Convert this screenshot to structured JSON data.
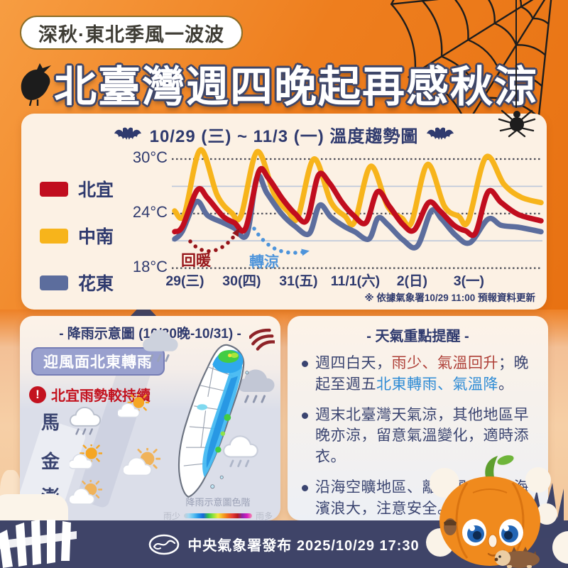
{
  "colors": {
    "navy": "#3A4470",
    "title_navy": "#2F3A6E",
    "accent_red": "#C3121F",
    "bullet_red": "#AF4038",
    "bullet_blue": "#2D8BD5",
    "footer_bg": "#3F4468",
    "badge_border": "#8a6d28",
    "periwinkle": "#99A0CE"
  },
  "header": {
    "topic_badge": "深秋·東北季風一波波",
    "main_title": "北臺灣週四晚起再感秋涼"
  },
  "chart_data": {
    "type": "line",
    "title": "10/29 (三) ~ 11/3 (一) 溫度趨勢圖",
    "unit": "°C",
    "ylim": [
      17.5,
      31.8
    ],
    "xlim": [
      0,
      6.45
    ],
    "yticks_dotted": [
      30,
      24,
      18
    ],
    "yticks_solid": [
      27,
      21
    ],
    "grid": "horizontal-only",
    "legend_position": "left",
    "x_categories": [
      "29(三)",
      "30(四)",
      "31(五)",
      "11/1(六)",
      "2(日)",
      "3(一)"
    ],
    "series": [
      {
        "name": "北宜",
        "color": "#C10D1E",
        "z": 3,
        "points": [
          [
            0,
            22
          ],
          [
            0.14,
            22.6
          ],
          [
            0.4,
            26.6
          ],
          [
            0.58,
            25.7
          ],
          [
            0.85,
            23.7
          ],
          [
            1.05,
            23
          ],
          [
            1.25,
            22.4
          ],
          [
            1.48,
            28.6
          ],
          [
            1.65,
            27.9
          ],
          [
            1.9,
            25.6
          ],
          [
            2.12,
            24
          ],
          [
            2.33,
            23.3
          ],
          [
            2.53,
            28.2
          ],
          [
            2.72,
            27.4
          ],
          [
            2.95,
            25.2
          ],
          [
            3.15,
            23.8
          ],
          [
            3.37,
            23
          ],
          [
            3.57,
            26.4
          ],
          [
            3.78,
            24.8
          ],
          [
            4.02,
            22.8
          ],
          [
            4.22,
            22.2
          ],
          [
            4.47,
            25.2
          ],
          [
            4.67,
            24.3
          ],
          [
            4.92,
            22.7
          ],
          [
            5.12,
            22.1
          ],
          [
            5.3,
            21.9
          ],
          [
            5.52,
            26.4
          ],
          [
            5.75,
            25.2
          ],
          [
            6.05,
            23.9
          ],
          [
            6.45,
            23.2
          ]
        ]
      },
      {
        "name": "中南",
        "color": "#F7B41B",
        "z": 1,
        "points": [
          [
            0,
            24.3
          ],
          [
            0.17,
            23.9
          ],
          [
            0.45,
            31
          ],
          [
            0.75,
            26
          ],
          [
            1,
            24.1
          ],
          [
            1.17,
            23.8
          ],
          [
            1.45,
            30.8
          ],
          [
            1.75,
            26.2
          ],
          [
            2,
            24.2
          ],
          [
            2.17,
            23.6
          ],
          [
            2.45,
            30
          ],
          [
            2.75,
            25.3
          ],
          [
            3,
            23.7
          ],
          [
            3.17,
            23.1
          ],
          [
            3.45,
            29.2
          ],
          [
            3.75,
            24.8
          ],
          [
            4,
            23.5
          ],
          [
            4.17,
            23
          ],
          [
            4.45,
            29.4
          ],
          [
            4.75,
            24.8
          ],
          [
            5,
            23.7
          ],
          [
            5.17,
            23.2
          ],
          [
            5.48,
            30.2
          ],
          [
            5.8,
            27.2
          ],
          [
            6.1,
            25.8
          ],
          [
            6.45,
            25.2
          ]
        ]
      },
      {
        "name": "花東",
        "color": "#5C6D9D",
        "z": 2,
        "points": [
          [
            0,
            21.2
          ],
          [
            0.13,
            22
          ],
          [
            0.38,
            25.3
          ],
          [
            0.58,
            23.8
          ],
          [
            0.85,
            23
          ],
          [
            1.05,
            22.4
          ],
          [
            1.27,
            21.7
          ],
          [
            1.45,
            28
          ],
          [
            1.62,
            26.3
          ],
          [
            1.88,
            24
          ],
          [
            2.12,
            22.6
          ],
          [
            2.37,
            21.8
          ],
          [
            2.55,
            24.9
          ],
          [
            2.75,
            23.6
          ],
          [
            2.98,
            22.6
          ],
          [
            3.17,
            22
          ],
          [
            3.42,
            21.2
          ],
          [
            3.58,
            23.5
          ],
          [
            3.75,
            22.8
          ],
          [
            4.02,
            21.1
          ],
          [
            4.27,
            20.4
          ],
          [
            4.52,
            24.3
          ],
          [
            4.7,
            23.4
          ],
          [
            4.95,
            21.6
          ],
          [
            5.2,
            20.8
          ],
          [
            5.52,
            23.4
          ],
          [
            5.75,
            22.7
          ],
          [
            6.05,
            22.5
          ],
          [
            6.45,
            22
          ]
        ]
      }
    ],
    "annotations": [
      {
        "label": "回暖",
        "color": "#96151A",
        "style": "dotted-arrow-up"
      },
      {
        "label": "轉涼",
        "color": "#4D94DB",
        "style": "dotted-arrow-down"
      }
    ],
    "footnote": "※ 依據氣象署10/29 11:00 預報資料更新"
  },
  "rain_card": {
    "title": "- 降雨示意圖 (10/30晚-10/31) -",
    "badge": "迎風面北東轉雨",
    "warning_icon": "!",
    "warning": "北宜雨勢較持續",
    "regions": [
      {
        "label": "馬",
        "icon": "rain-cloud"
      },
      {
        "label": "金",
        "icon": "partly-sunny"
      },
      {
        "label": "澎",
        "icon": "mostly-cloudy"
      }
    ],
    "map_icons": [
      "rain-cloud-gray",
      "rain-cloud-dark",
      "rain-cloud-white",
      "partly-sunny",
      "mostly-cloudy"
    ],
    "scale": {
      "title": "降雨示意圖色階",
      "min_label": "雨少",
      "max_label": "雨多",
      "colors": [
        "#c9cdd6",
        "#9fd8f2",
        "#5bc0f0",
        "#2196e8",
        "#1565d8",
        "#35c24a",
        "#8ee33e",
        "#f5e63a",
        "#f5a623",
        "#ef6c1a",
        "#e53935",
        "#b71c1c",
        "#8e24aa",
        "#d81bc0",
        "#f48fb1"
      ]
    }
  },
  "highlight_card": {
    "title": "- 天氣重點提醒 -",
    "bullets": [
      [
        {
          "t": "週四白天，",
          "c": "navy"
        },
        {
          "t": "雨少、氣溫回升",
          "c": "red"
        },
        {
          "t": "；晚起至週五",
          "c": "navy"
        },
        {
          "t": "北東轉雨、氣溫降",
          "c": "blue"
        },
        {
          "t": "。",
          "c": "navy"
        }
      ],
      [
        {
          "t": "週末北臺灣天氣涼，其他地區早晚亦涼，留意氣溫變化，適時添衣。",
          "c": "navy"
        }
      ],
      [
        {
          "t": "沿海空曠地區、離島風力強，海濱浪大，注意安全。",
          "c": "navy"
        }
      ]
    ]
  },
  "footer": {
    "agency": "中央氣象署發布",
    "datetime": "2025/10/29 17:30"
  }
}
